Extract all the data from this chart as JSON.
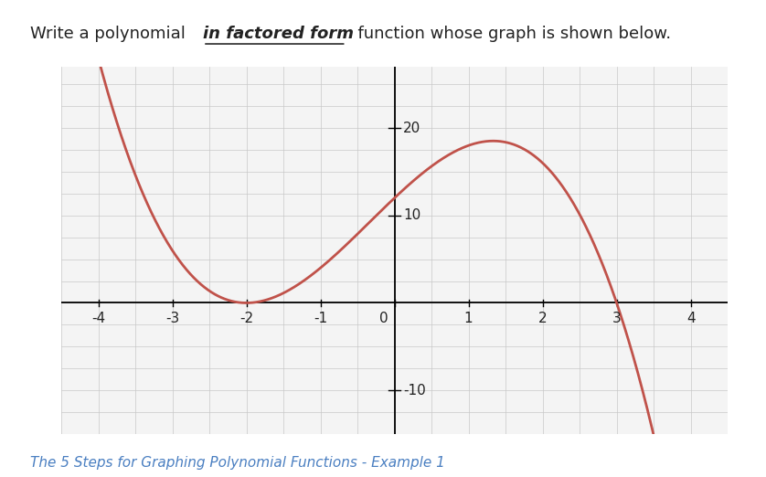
{
  "title_part1": "Write a polynomial ",
  "title_underline": "in factored form",
  "title_part2": "  function whose graph is shown below.",
  "footer_text": "The 5 Steps for Graphing Polynomial Functions - Example 1",
  "xlim": [
    -4.5,
    4.5
  ],
  "ylim": [
    -15,
    27
  ],
  "xticks": [
    -4,
    -3,
    -2,
    -1,
    0,
    1,
    2,
    3,
    4
  ],
  "yticks": [
    -10,
    10,
    20
  ],
  "curve_color": "#c0524a",
  "curve_linewidth": 2.0,
  "grid_color": "#c8c8c8",
  "grid_linewidth": 0.5,
  "axis_color": "#000000",
  "bg_color": "#ffffff",
  "plot_bg_color": "#f4f4f4",
  "tick_fontsize": 11,
  "title_fontsize": 13,
  "footer_fontsize": 11,
  "text_color": "#222222",
  "footer_color": "#4a7fc1",
  "figsize": [
    8.38,
    5.22
  ],
  "dpi": 100
}
